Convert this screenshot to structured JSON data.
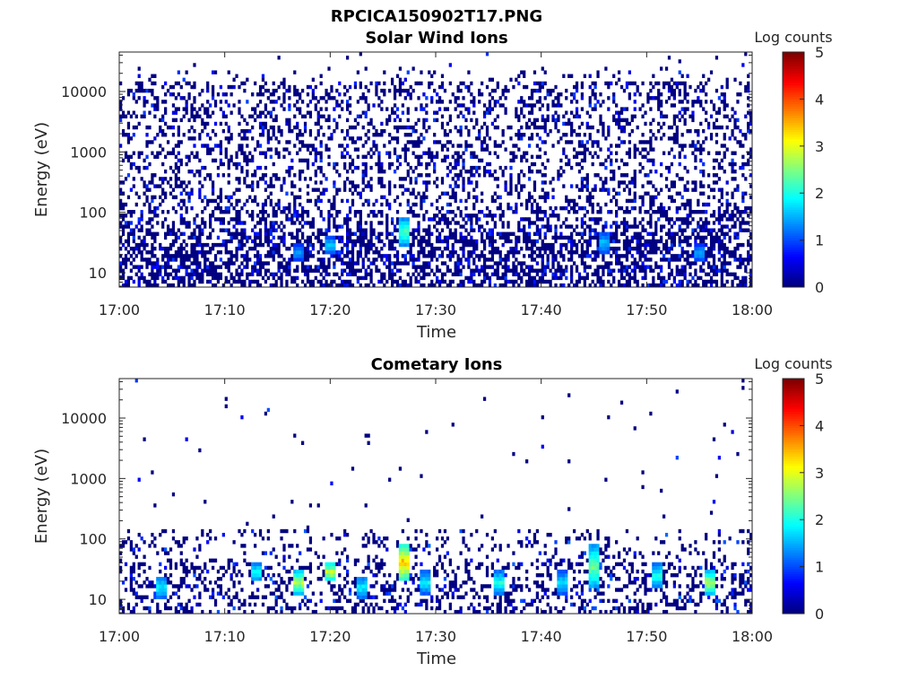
{
  "figure": {
    "title": "RPCICA150902T17.PNG"
  },
  "chart_data": [
    {
      "type": "heatmap",
      "title": "Solar Wind Ions",
      "xlabel": "Time",
      "ylabel": "Energy (eV)",
      "x_ticks": [
        "17:00",
        "17:10",
        "17:20",
        "17:30",
        "17:40",
        "17:50",
        "18:00"
      ],
      "xlim": [
        "17:00",
        "18:00"
      ],
      "y_ticks": [
        "10",
        "100",
        "1000",
        "10000"
      ],
      "ylim": [
        5.8,
        45000
      ],
      "yscale": "log",
      "colorbar": {
        "label": "Log counts",
        "range": [
          0,
          5
        ],
        "ticks": [
          "0",
          "1",
          "2",
          "3",
          "4",
          "5"
        ],
        "colormap": "jet"
      },
      "description_features": {
        "background_level": "scattered single counts (log 0) across 10 eV – 15 keV",
        "hotspots": [
          {
            "time": "17:27",
            "energy_eV": [
              28,
              80
            ],
            "log_counts": 2.5
          },
          {
            "time": "17:20",
            "energy_eV": [
              20,
              40
            ],
            "log_counts": 1.8
          },
          {
            "time": "17:46",
            "energy_eV": [
              20,
              50
            ],
            "log_counts": 1.7
          },
          {
            "time": "17:55",
            "energy_eV": [
              15,
              30
            ],
            "log_counts": 1.6
          },
          {
            "time": "17:17",
            "energy_eV": [
              15,
              30
            ],
            "log_counts": 1.5
          }
        ]
      }
    },
    {
      "type": "heatmap",
      "title": "Cometary Ions",
      "xlabel": "Time",
      "ylabel": "Energy (eV)",
      "x_ticks": [
        "17:00",
        "17:10",
        "17:20",
        "17:30",
        "17:40",
        "17:50",
        "18:00"
      ],
      "xlim": [
        "17:00",
        "18:00"
      ],
      "y_ticks": [
        "10",
        "100",
        "1000",
        "10000"
      ],
      "ylim": [
        5.8,
        45000
      ],
      "yscale": "log",
      "colorbar": {
        "label": "Log counts",
        "range": [
          0,
          5
        ],
        "ticks": [
          "0",
          "1",
          "2",
          "3",
          "4",
          "5"
        ],
        "colormap": "jet"
      },
      "description_features": {
        "background_level": "counts mostly below 150 eV, sparse dots above",
        "hotspots": [
          {
            "time": "17:27",
            "energy_eV": [
              20,
              80
            ],
            "log_counts": 3.8
          },
          {
            "time": "17:20",
            "energy_eV": [
              20,
              40
            ],
            "log_counts": 3.2
          },
          {
            "time": "17:17",
            "energy_eV": [
              12,
              30
            ],
            "log_counts": 3.0
          },
          {
            "time": "17:56",
            "energy_eV": [
              12,
              30
            ],
            "log_counts": 3.0
          },
          {
            "time": "17:45",
            "energy_eV": [
              15,
              80
            ],
            "log_counts": 2.6
          },
          {
            "time": "17:13",
            "energy_eV": [
              20,
              40
            ],
            "log_counts": 2.2
          },
          {
            "time": "17:51",
            "energy_eV": [
              15,
              40
            ],
            "log_counts": 2.2
          },
          {
            "time": "17:36",
            "energy_eV": [
              12,
              30
            ],
            "log_counts": 2.2
          },
          {
            "time": "17:04",
            "energy_eV": [
              10,
              25
            ],
            "log_counts": 2.0
          },
          {
            "time": "17:23",
            "energy_eV": [
              10,
              25
            ],
            "log_counts": 2.0
          },
          {
            "time": "17:29",
            "energy_eV": [
              12,
              30
            ],
            "log_counts": 2.0
          },
          {
            "time": "17:42",
            "energy_eV": [
              12,
              30
            ],
            "log_counts": 1.9
          }
        ]
      }
    }
  ]
}
